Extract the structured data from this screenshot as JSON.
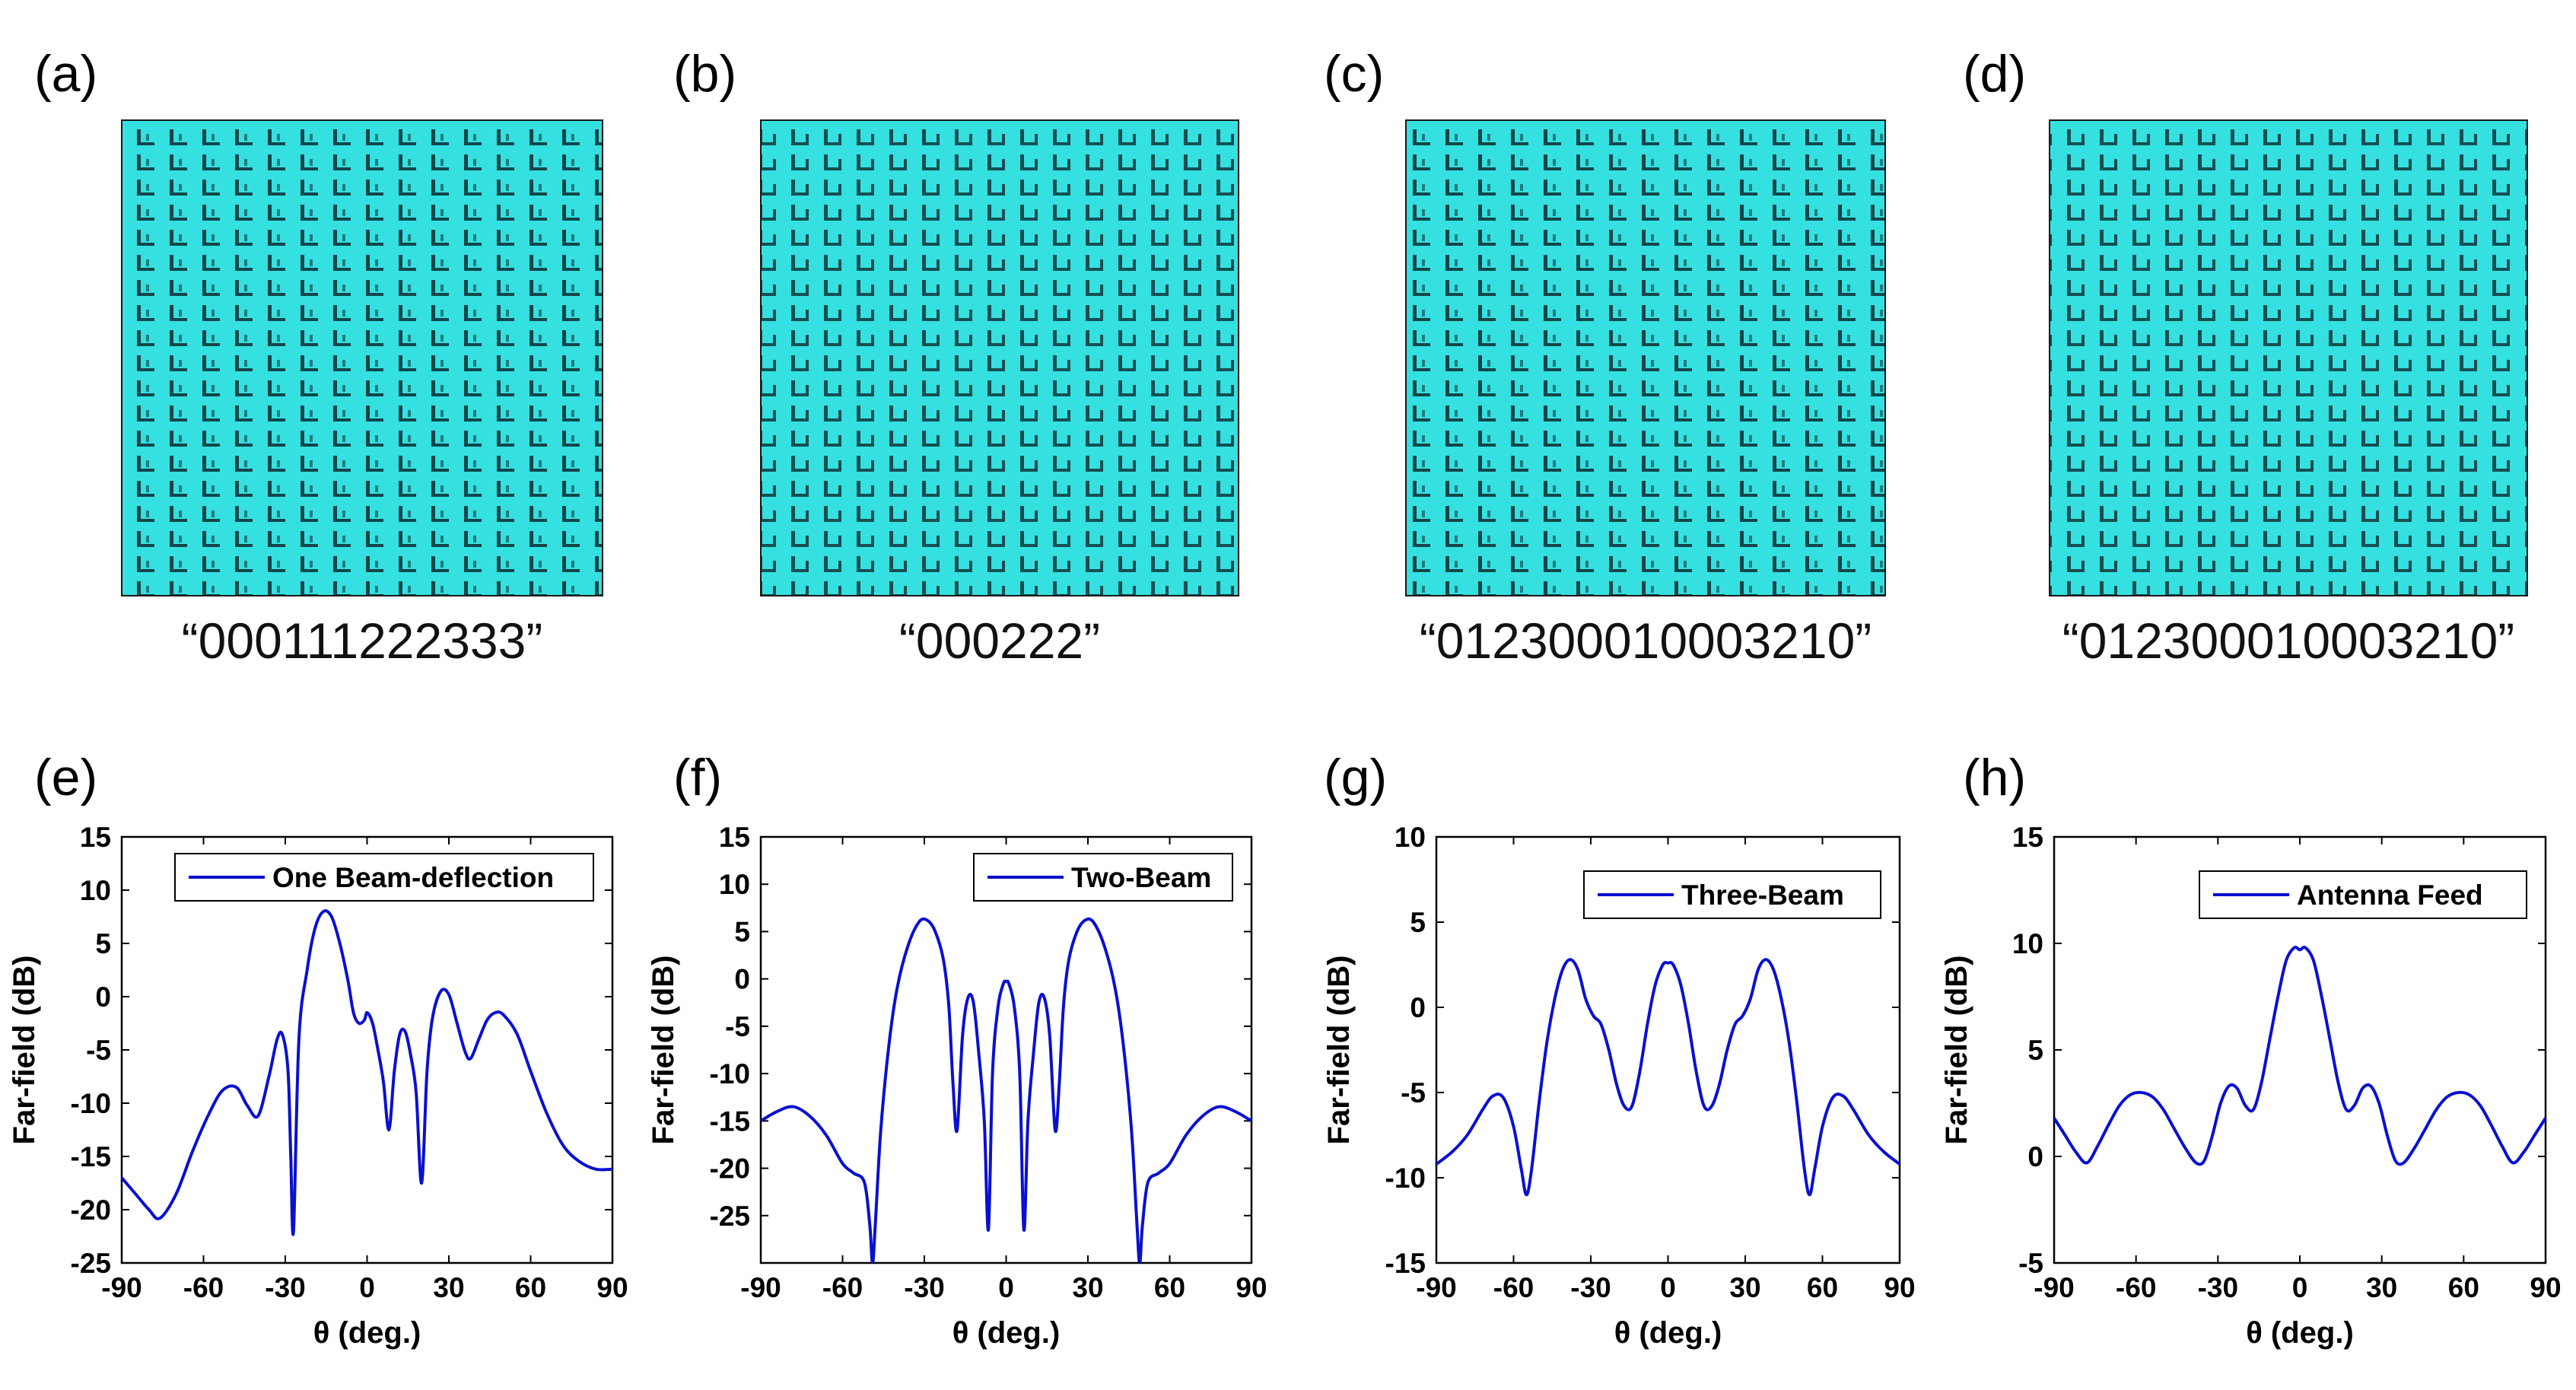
{
  "colors": {
    "metasurface": "#35e0e0",
    "cell_mark": "#0d2b30",
    "curve": "#0a10d0",
    "axis": "#000000"
  },
  "metasurfaces": [
    {
      "label": "(a)",
      "code": "“000111222333”"
    },
    {
      "label": "(b)",
      "code": "“000222”"
    },
    {
      "label": "(c)",
      "code": "“012300010003210”"
    },
    {
      "label": "(d)",
      "code": "“012300010003210”"
    }
  ],
  "chart_data": [
    {
      "panel": "(e)",
      "type": "line",
      "xlabel": "θ (deg.)",
      "ylabel": "Far-field (dB)",
      "xlim": [
        -90,
        90
      ],
      "ylim": [
        -25,
        15
      ],
      "xticks": [
        "-90",
        "-60",
        "-30",
        "0",
        "30",
        "60",
        "90"
      ],
      "yticks": [
        "-25",
        "-20",
        "-15",
        "-10",
        "-5",
        "0",
        "5",
        "10",
        "15"
      ],
      "legend": "One Beam-deflection",
      "legend_position": "top-right",
      "series": [
        {
          "name": "One Beam-deflection",
          "x": [
            -90,
            -85,
            -80,
            -76,
            -70,
            -64,
            -58,
            -53,
            -48,
            -44,
            -40,
            -36,
            -33,
            -31,
            -29,
            -28,
            -27,
            -25,
            -22,
            -19,
            -16,
            -13,
            -10,
            -7,
            -5,
            -3,
            -1,
            0,
            2,
            4,
            6,
            8,
            10,
            12,
            14,
            16,
            18,
            20,
            22,
            24,
            27,
            30,
            33,
            36,
            38,
            41,
            44,
            47,
            50,
            55,
            60,
            66,
            72,
            78,
            84,
            90
          ],
          "y": [
            -17,
            -18.5,
            -20,
            -20.8,
            -18.5,
            -14.5,
            -11,
            -8.8,
            -8.5,
            -10.2,
            -11.2,
            -7.5,
            -4,
            -3.6,
            -7,
            -15,
            -22,
            -4,
            2.5,
            6.5,
            8,
            7.5,
            5,
            1.5,
            -1.5,
            -2.5,
            -2.2,
            -1.5,
            -2.5,
            -5,
            -8,
            -12.5,
            -7,
            -3.5,
            -3.3,
            -5.5,
            -9,
            -17.5,
            -7,
            -2,
            0.5,
            0.2,
            -2.5,
            -5.2,
            -5.8,
            -4,
            -2.2,
            -1.5,
            -1.7,
            -3.5,
            -7,
            -11,
            -14,
            -15.5,
            -16.2,
            -16.2
          ]
        }
      ]
    },
    {
      "panel": "(f)",
      "type": "line",
      "xlabel": "θ (deg.)",
      "ylabel": "Far-field (dB)",
      "xlim": [
        -90,
        90
      ],
      "ylim": [
        -30,
        15
      ],
      "xticks": [
        "-90",
        "-60",
        "-30",
        "0",
        "30",
        "60",
        "90"
      ],
      "yticks": [
        "-25",
        "-20",
        "-15",
        "-10",
        "-5",
        "0",
        "5",
        "10",
        "15"
      ],
      "legend": "Two-Beam",
      "legend_position": "top-right",
      "series": [
        {
          "name": "Two-Beam",
          "x": [
            -90,
            -84,
            -78,
            -72,
            -66,
            -60,
            -56,
            -52,
            -50,
            -49,
            -48,
            -46,
            -43,
            -40,
            -36,
            -32,
            -29,
            -26,
            -23,
            -21,
            -19.5,
            -18,
            -16,
            -14,
            -12,
            -10,
            -8,
            -6.5,
            -5,
            -3,
            -1,
            0,
            1,
            3,
            5,
            6.5,
            8,
            10,
            12,
            14,
            16,
            18,
            19.5,
            21,
            23,
            26,
            29,
            32,
            36,
            40,
            43,
            46,
            48,
            49,
            50,
            52,
            56,
            60,
            66,
            72,
            78,
            84,
            90
          ],
          "y": [
            -15,
            -14,
            -13.5,
            -14.5,
            -16.5,
            -19.5,
            -20.5,
            -21.5,
            -26,
            -30,
            -26,
            -16,
            -7,
            -1,
            3.5,
            6,
            6.2,
            5,
            2,
            -3,
            -11,
            -16,
            -6,
            -2,
            -2.5,
            -8,
            -15,
            -26.5,
            -10,
            -3,
            -0.5,
            -0.3,
            -0.5,
            -3,
            -10,
            -26.5,
            -15,
            -8,
            -2.5,
            -2,
            -6,
            -16,
            -11,
            -3,
            2,
            5,
            6.2,
            6,
            3.5,
            -1,
            -7,
            -16,
            -26,
            -30,
            -26,
            -21.5,
            -20.5,
            -19.5,
            -16.5,
            -14.5,
            -13.5,
            -14,
            -15
          ]
        }
      ]
    },
    {
      "panel": "(g)",
      "type": "line",
      "xlabel": "θ (deg.)",
      "ylabel": "Far-field (dB)",
      "xlim": [
        -90,
        90
      ],
      "ylim": [
        -15,
        10
      ],
      "xticks": [
        "-90",
        "-60",
        "-30",
        "0",
        "30",
        "60",
        "90"
      ],
      "yticks": [
        "-15",
        "-10",
        "-5",
        "0",
        "5",
        "10"
      ],
      "legend": "Three-Beam",
      "legend_position": "top-right",
      "series": [
        {
          "name": "Three-Beam",
          "x": [
            -90,
            -84,
            -78,
            -72,
            -68,
            -64,
            -60,
            -57,
            -55,
            -53,
            -50,
            -47,
            -44,
            -41,
            -38,
            -35,
            -32,
            -29,
            -26,
            -23,
            -20,
            -17,
            -14,
            -11,
            -8,
            -5,
            -2,
            0,
            2,
            5,
            8,
            11,
            14,
            17,
            20,
            23,
            26,
            29,
            32,
            35,
            38,
            41,
            44,
            47,
            50,
            53,
            55,
            57,
            60,
            64,
            68,
            72,
            78,
            84,
            90
          ],
          "y": [
            -9.2,
            -8.5,
            -7.5,
            -6,
            -5.2,
            -5.3,
            -7,
            -9.5,
            -11,
            -9.5,
            -5.5,
            -2,
            0.5,
            2.2,
            2.8,
            2.2,
            0.5,
            -0.5,
            -1,
            -2.5,
            -4.5,
            -5.8,
            -5.8,
            -3.8,
            -1,
            1.3,
            2.5,
            2.6,
            2.5,
            1.3,
            -1,
            -3.8,
            -5.8,
            -5.8,
            -4.5,
            -2.5,
            -1,
            -0.5,
            0.5,
            2.2,
            2.8,
            2.2,
            0.5,
            -2,
            -5.5,
            -9.5,
            -11,
            -9.5,
            -7,
            -5.3,
            -5.2,
            -6,
            -7.5,
            -8.5,
            -9.2
          ]
        }
      ]
    },
    {
      "panel": "(h)",
      "type": "line",
      "xlabel": "θ (deg.)",
      "ylabel": "Far-field (dB)",
      "xlim": [
        -90,
        90
      ],
      "ylim": [
        -5,
        15
      ],
      "xticks": [
        "-90",
        "-60",
        "-30",
        "0",
        "30",
        "60",
        "90"
      ],
      "yticks": [
        "-5",
        "0",
        "5",
        "10",
        "15"
      ],
      "legend": "Antenna Feed",
      "legend_position": "top-right",
      "series": [
        {
          "name": "Antenna Feed",
          "x": [
            -90,
            -86,
            -82,
            -78,
            -74,
            -70,
            -66,
            -62,
            -58,
            -54,
            -50,
            -46,
            -42,
            -38,
            -35,
            -32,
            -29,
            -26,
            -23,
            -20,
            -17,
            -14,
            -11,
            -8,
            -5,
            -2,
            0,
            2,
            5,
            8,
            11,
            14,
            17,
            20,
            23,
            26,
            29,
            32,
            35,
            38,
            42,
            46,
            50,
            54,
            58,
            62,
            66,
            70,
            74,
            78,
            82,
            86,
            90
          ],
          "y": [
            1.8,
            1,
            0.2,
            -0.3,
            0.5,
            1.5,
            2.4,
            2.9,
            3,
            2.8,
            2.2,
            1.3,
            0.4,
            -0.3,
            -0.2,
            1,
            2.5,
            3.3,
            3.2,
            2.4,
            2.2,
            3.5,
            5.5,
            7.5,
            9.2,
            9.8,
            9.7,
            9.8,
            9.2,
            7.5,
            5.5,
            3.5,
            2.2,
            2.4,
            3.2,
            3.3,
            2.5,
            1,
            -0.2,
            -0.3,
            0.4,
            1.3,
            2.2,
            2.8,
            3,
            2.9,
            2.4,
            1.5,
            0.5,
            -0.3,
            0.2,
            1,
            1.8
          ]
        }
      ]
    }
  ]
}
